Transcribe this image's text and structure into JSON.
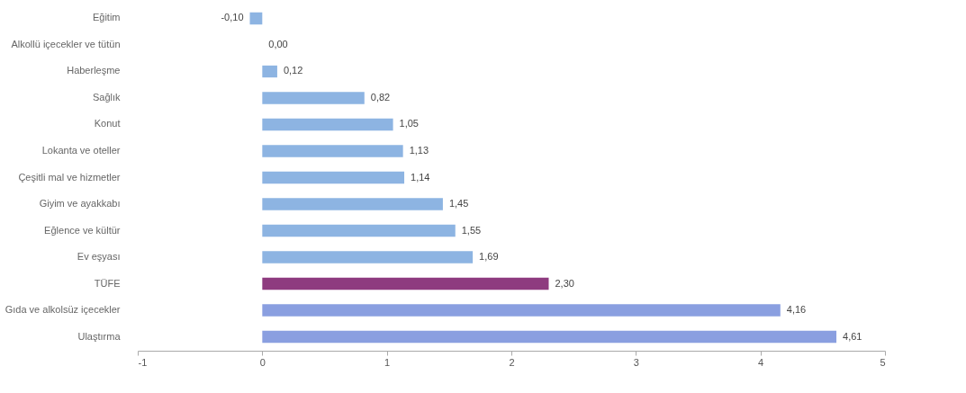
{
  "chart_data": {
    "type": "bar",
    "orientation": "horizontal",
    "categories": [
      "Eğitim",
      "Alkollü içecekler ve tütün",
      "Haberleşme",
      "Sağlık",
      "Konut",
      "Lokanta ve oteller",
      "Çeşitli mal ve hizmetler",
      "Giyim ve ayakkabı",
      "Eğlence ve kültür",
      "Ev eşyası",
      "TÜFE",
      "Gıda ve alkolsüz içecekler",
      "Ulaştırma"
    ],
    "values": [
      -0.1,
      0.0,
      0.12,
      0.82,
      1.05,
      1.13,
      1.14,
      1.45,
      1.55,
      1.69,
      2.3,
      4.16,
      4.61
    ],
    "value_labels": [
      "-0,10",
      "0,00",
      "0,12",
      "0,82",
      "1,05",
      "1,13",
      "1,14",
      "1,45",
      "1,55",
      "1,69",
      "2,30",
      "4,16",
      "4,61"
    ],
    "colors": [
      "#8db4e2",
      "#8db4e2",
      "#8db4e2",
      "#8db4e2",
      "#8db4e2",
      "#8db4e2",
      "#8db4e2",
      "#8db4e2",
      "#8db4e2",
      "#8db4e2",
      "#8e3b7f",
      "#8a9fe0",
      "#8a9fe0"
    ],
    "xlim": [
      -1,
      5
    ],
    "xticks": [
      -1,
      0,
      1,
      2,
      3,
      4,
      5
    ],
    "grid": false
  }
}
